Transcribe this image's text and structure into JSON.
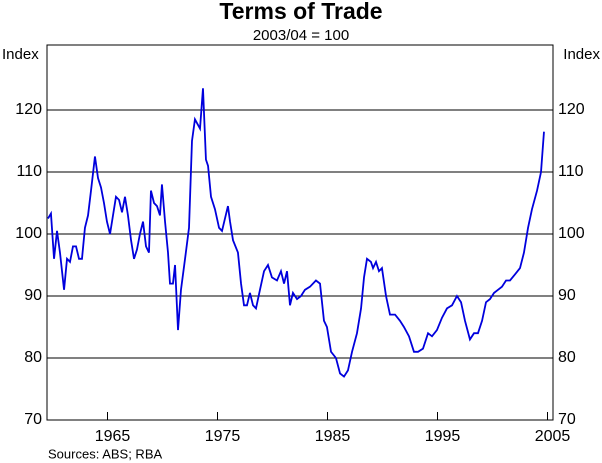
{
  "chart_data": {
    "type": "line",
    "title": "Terms of Trade",
    "subtitle": "2003/04 = 100",
    "y_label": "Index",
    "y2_label": "Index",
    "source": "Sources: ABS; RBA",
    "xlim": [
      1959.5,
      2005.5
    ],
    "xticks": [
      1965,
      1975,
      1985,
      1995,
      2005
    ],
    "ylim": [
      70,
      130
    ],
    "yticks": [
      70,
      80,
      90,
      100,
      110,
      120
    ],
    "y2lim": [
      70,
      130
    ],
    "y2ticks": [
      70,
      80,
      90,
      100,
      110,
      120
    ],
    "grid": true,
    "x": [
      1959.59,
      1959.86,
      1960.14,
      1960.41,
      1960.68,
      1961.05,
      1961.32,
      1961.59,
      1961.86,
      1962.14,
      1962.41,
      1962.68,
      1962.95,
      1963.23,
      1963.5,
      1963.86,
      1964.14,
      1964.41,
      1964.68,
      1964.95,
      1965.23,
      1965.5,
      1965.77,
      1966.05,
      1966.32,
      1966.59,
      1966.86,
      1967.14,
      1967.41,
      1967.68,
      1967.95,
      1968.23,
      1968.5,
      1968.77,
      1968.95,
      1969.23,
      1969.5,
      1969.77,
      1969.95,
      1970.23,
      1970.5,
      1970.68,
      1970.95,
      1971.14,
      1971.41,
      1971.68,
      1972.05,
      1972.41,
      1972.68,
      1972.95,
      1973.41,
      1973.68,
      1973.95,
      1974.14,
      1974.41,
      1974.77,
      1975.14,
      1975.41,
      1975.95,
      1976.14,
      1976.41,
      1976.86,
      1977.14,
      1977.41,
      1977.68,
      1977.95,
      1978.23,
      1978.5,
      1978.86,
      1979.23,
      1979.59,
      1979.95,
      1980.41,
      1980.77,
      1981.05,
      1981.32,
      1981.59,
      1981.86,
      1982.23,
      1982.59,
      1982.95,
      1983.41,
      1983.95,
      1984.32,
      1984.68,
      1984.95,
      1985.32,
      1985.77,
      1986.14,
      1986.5,
      1986.86,
      1987.23,
      1987.68,
      1988.05,
      1988.32,
      1988.59,
      1988.95,
      1989.14,
      1989.41,
      1989.68,
      1989.95,
      1990.32,
      1990.68,
      1991.14,
      1991.59,
      1991.95,
      1992.41,
      1992.86,
      1993.23,
      1993.68,
      1994.14,
      1994.5,
      1994.95,
      1995.41,
      1995.86,
      1996.32,
      1996.77,
      1997.14,
      1997.5,
      1997.95,
      1998.32,
      1998.68,
      1999.05,
      1999.41,
      1999.77,
      2000.14,
      2000.5,
      2000.86,
      2001.23,
      2001.59,
      2002.05,
      2002.5,
      2002.86,
      2003.23,
      2003.59,
      2004.05,
      2004.41,
      2004.68
    ],
    "series": [
      {
        "name": "Terms of Trade",
        "color": "#0000dd",
        "values": [
          102.5,
          103.3,
          96,
          100.5,
          97,
          91,
          96,
          95.5,
          98,
          98,
          96,
          96,
          101,
          103,
          107,
          112.5,
          109,
          107.5,
          105,
          102,
          100,
          103,
          106,
          105.5,
          103.5,
          106,
          103,
          99,
          96,
          97.5,
          100,
          102,
          98,
          97,
          107,
          105,
          104.5,
          103,
          108,
          102,
          97,
          92,
          92,
          95,
          84.5,
          91,
          96,
          101,
          115,
          118.5,
          117,
          123.5,
          112,
          111,
          106,
          104,
          101,
          100.5,
          104.5,
          102,
          99,
          97,
          92,
          88.5,
          88.5,
          90.5,
          88.5,
          88,
          91,
          94,
          95,
          93,
          92.5,
          94,
          92,
          94,
          88.5,
          90.5,
          89.5,
          90,
          91,
          91.5,
          92.5,
          92,
          86,
          85,
          81,
          80,
          77.5,
          77,
          78,
          81,
          84,
          88,
          93,
          96,
          95.5,
          94.5,
          95.5,
          94,
          94.5,
          90,
          87,
          87,
          86,
          85,
          83.5,
          81,
          81,
          81.5,
          84,
          83.5,
          84.5,
          86.5,
          88,
          88.5,
          90,
          89,
          86,
          83,
          84,
          84,
          86,
          89,
          89.5,
          90.5,
          91,
          91.5,
          92.5,
          92.5,
          93.5,
          94.5,
          97,
          101,
          104,
          107,
          110,
          116.5
        ]
      }
    ]
  }
}
